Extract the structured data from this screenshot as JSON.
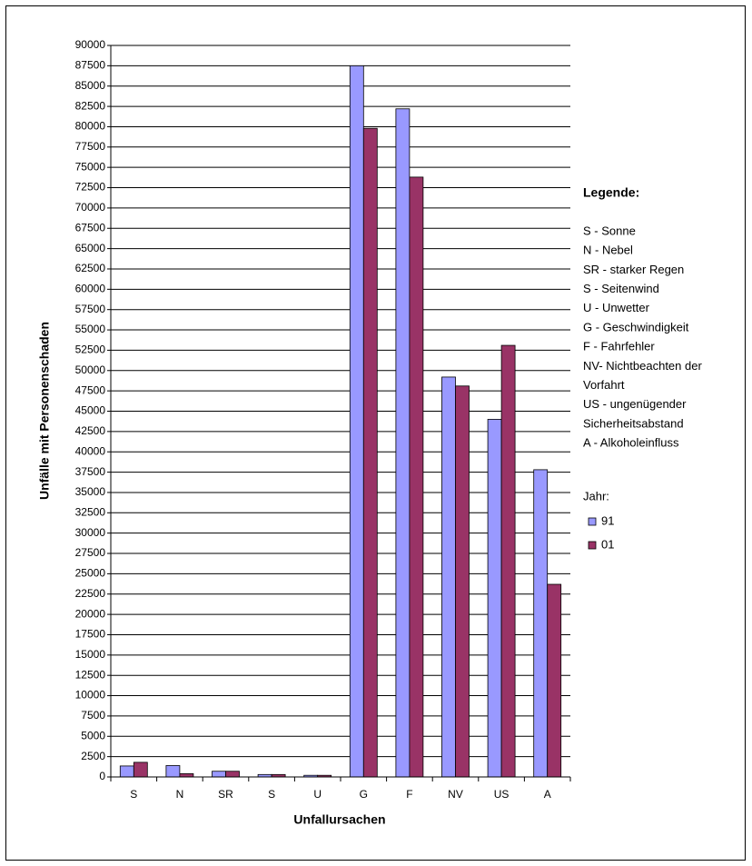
{
  "chart_data": {
    "type": "bar",
    "x_label": "Unfallursachen",
    "y_label": "Unfälle mit Personenschaden",
    "categories": [
      "S",
      "N",
      "SR",
      "S",
      "U",
      "G",
      "F",
      "NV",
      "US",
      "A"
    ],
    "series": [
      {
        "name": "91",
        "color": "#9999ff",
        "values": [
          1350,
          1400,
          700,
          300,
          200,
          87500,
          82200,
          49200,
          44000,
          37800
        ]
      },
      {
        "name": "01",
        "color": "#993366",
        "values": [
          1800,
          400,
          700,
          300,
          200,
          79800,
          73800,
          48100,
          53100,
          23700
        ]
      }
    ],
    "ylim": [
      0,
      90000
    ],
    "yticks": [
      0,
      2500,
      5000,
      7500,
      10000,
      12500,
      15000,
      17500,
      20000,
      22500,
      25000,
      27500,
      30000,
      32500,
      35000,
      37500,
      40000,
      42500,
      45000,
      47500,
      50000,
      52500,
      55000,
      57500,
      60000,
      62500,
      65000,
      67500,
      70000,
      72500,
      75000,
      77500,
      80000,
      82500,
      85000,
      87500,
      90000
    ],
    "grid": true,
    "legend_title": "Legende:",
    "legend_notes": [
      "S - Sonne",
      "N - Nebel",
      "SR - starker Regen",
      "S - Seitenwind",
      "U - Unwetter",
      "G - Geschwindigkeit",
      "F - Fahrfehler",
      "NV- Nichtbeachten der",
      "Vorfahrt",
      "US - ungenügender",
      "Sicherheitsabstand",
      "A - Alkoholeinfluss"
    ],
    "legend_series_title": "Jahr:",
    "legend": "right"
  }
}
